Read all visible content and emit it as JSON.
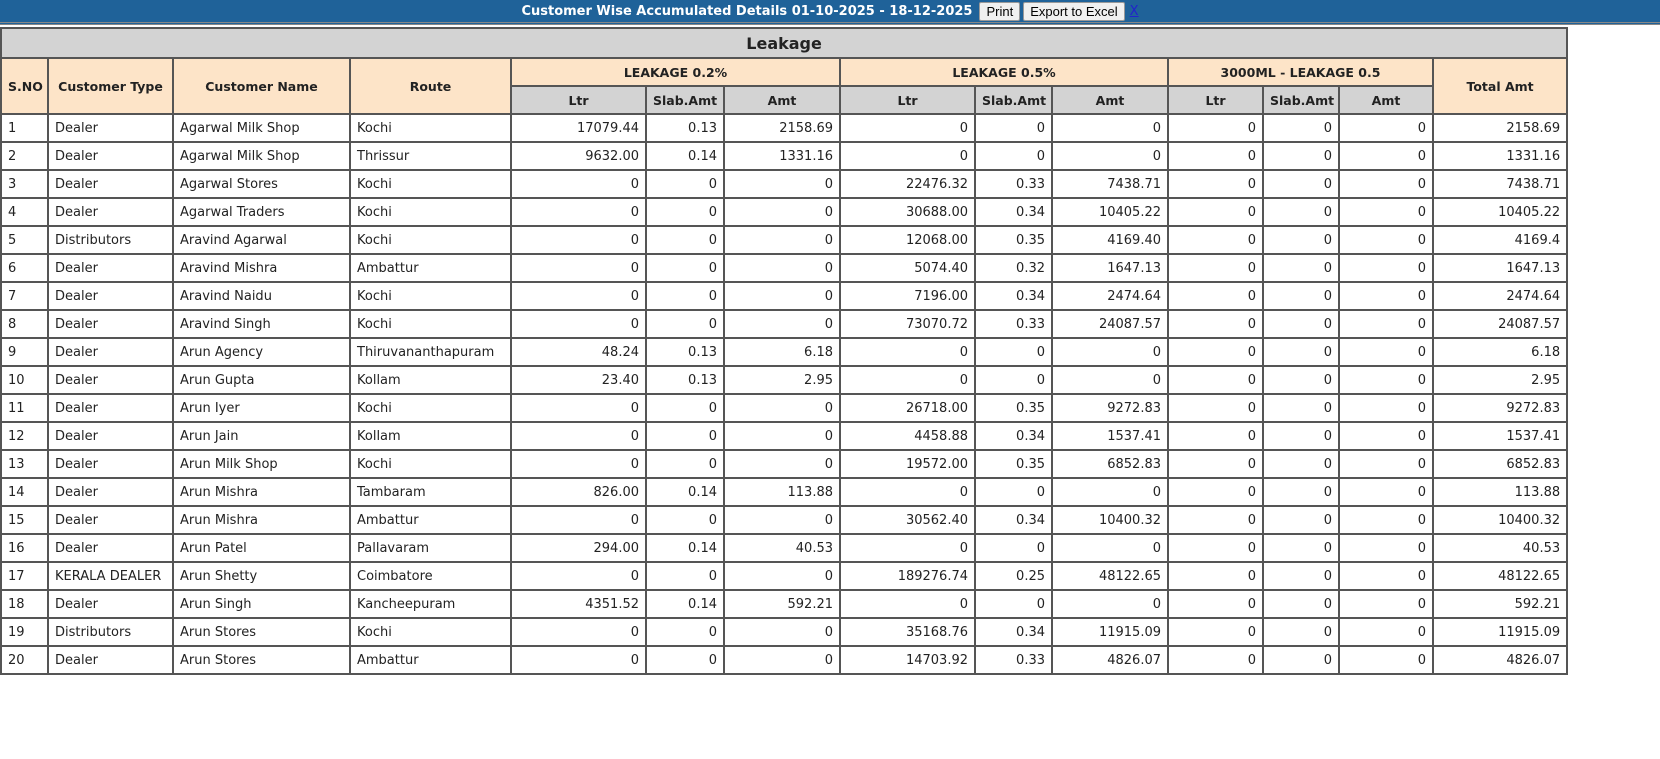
{
  "header": {
    "title": "Customer Wise Accumulated Details 01-10-2025 - 18-12-2025",
    "print_label": "Print",
    "export_label": "Export to Excel",
    "close_label": "X"
  },
  "table": {
    "caption": "Leakage",
    "columns": {
      "sno": "S.NO",
      "type": "Customer Type",
      "name": "Customer Name",
      "route": "Route",
      "g1": "LEAKAGE 0.2%",
      "g2": "LEAKAGE 0.5%",
      "g3": "3000ML - LEAKAGE 0.5",
      "total": "Total Amt",
      "ltr": "Ltr",
      "slab": "Slab.Amt",
      "amt": "Amt"
    },
    "rows": [
      [
        "1",
        "Dealer",
        "Agarwal Milk Shop",
        "Kochi",
        "17079.44",
        "0.13",
        "2158.69",
        "0",
        "0",
        "0",
        "0",
        "0",
        "0",
        "2158.69"
      ],
      [
        "2",
        "Dealer",
        "Agarwal Milk Shop",
        "Thrissur",
        "9632.00",
        "0.14",
        "1331.16",
        "0",
        "0",
        "0",
        "0",
        "0",
        "0",
        "1331.16"
      ],
      [
        "3",
        "Dealer",
        "Agarwal Stores",
        "Kochi",
        "0",
        "0",
        "0",
        "22476.32",
        "0.33",
        "7438.71",
        "0",
        "0",
        "0",
        "7438.71"
      ],
      [
        "4",
        "Dealer",
        "Agarwal Traders",
        "Kochi",
        "0",
        "0",
        "0",
        "30688.00",
        "0.34",
        "10405.22",
        "0",
        "0",
        "0",
        "10405.22"
      ],
      [
        "5",
        "Distributors",
        "Aravind Agarwal",
        "Kochi",
        "0",
        "0",
        "0",
        "12068.00",
        "0.35",
        "4169.40",
        "0",
        "0",
        "0",
        "4169.4"
      ],
      [
        "6",
        "Dealer",
        "Aravind Mishra",
        "Ambattur",
        "0",
        "0",
        "0",
        "5074.40",
        "0.32",
        "1647.13",
        "0",
        "0",
        "0",
        "1647.13"
      ],
      [
        "7",
        "Dealer",
        "Aravind Naidu",
        "Kochi",
        "0",
        "0",
        "0",
        "7196.00",
        "0.34",
        "2474.64",
        "0",
        "0",
        "0",
        "2474.64"
      ],
      [
        "8",
        "Dealer",
        "Aravind Singh",
        "Kochi",
        "0",
        "0",
        "0",
        "73070.72",
        "0.33",
        "24087.57",
        "0",
        "0",
        "0",
        "24087.57"
      ],
      [
        "9",
        "Dealer",
        "Arun Agency",
        "Thiruvananthapuram",
        "48.24",
        "0.13",
        "6.18",
        "0",
        "0",
        "0",
        "0",
        "0",
        "0",
        "6.18"
      ],
      [
        "10",
        "Dealer",
        "Arun Gupta",
        "Kollam",
        "23.40",
        "0.13",
        "2.95",
        "0",
        "0",
        "0",
        "0",
        "0",
        "0",
        "2.95"
      ],
      [
        "11",
        "Dealer",
        "Arun Iyer",
        "Kochi",
        "0",
        "0",
        "0",
        "26718.00",
        "0.35",
        "9272.83",
        "0",
        "0",
        "0",
        "9272.83"
      ],
      [
        "12",
        "Dealer",
        "Arun Jain",
        "Kollam",
        "0",
        "0",
        "0",
        "4458.88",
        "0.34",
        "1537.41",
        "0",
        "0",
        "0",
        "1537.41"
      ],
      [
        "13",
        "Dealer",
        "Arun Milk Shop",
        "Kochi",
        "0",
        "0",
        "0",
        "19572.00",
        "0.35",
        "6852.83",
        "0",
        "0",
        "0",
        "6852.83"
      ],
      [
        "14",
        "Dealer",
        "Arun Mishra",
        "Tambaram",
        "826.00",
        "0.14",
        "113.88",
        "0",
        "0",
        "0",
        "0",
        "0",
        "0",
        "113.88"
      ],
      [
        "15",
        "Dealer",
        "Arun Mishra",
        "Ambattur",
        "0",
        "0",
        "0",
        "30562.40",
        "0.34",
        "10400.32",
        "0",
        "0",
        "0",
        "10400.32"
      ],
      [
        "16",
        "Dealer",
        "Arun Patel",
        "Pallavaram",
        "294.00",
        "0.14",
        "40.53",
        "0",
        "0",
        "0",
        "0",
        "0",
        "0",
        "40.53"
      ],
      [
        "17",
        "KERALA DEALER",
        "Arun Shetty",
        "Coimbatore",
        "0",
        "0",
        "0",
        "189276.74",
        "0.25",
        "48122.65",
        "0",
        "0",
        "0",
        "48122.65"
      ],
      [
        "18",
        "Dealer",
        "Arun Singh",
        "Kancheepuram",
        "4351.52",
        "0.14",
        "592.21",
        "0",
        "0",
        "0",
        "0",
        "0",
        "0",
        "592.21"
      ],
      [
        "19",
        "Distributors",
        "Arun Stores",
        "Kochi",
        "0",
        "0",
        "0",
        "35168.76",
        "0.34",
        "11915.09",
        "0",
        "0",
        "0",
        "11915.09"
      ],
      [
        "20",
        "Dealer",
        "Arun Stores",
        "Ambattur",
        "0",
        "0",
        "0",
        "14703.92",
        "0.33",
        "4826.07",
        "0",
        "0",
        "0",
        "4826.07"
      ]
    ]
  }
}
